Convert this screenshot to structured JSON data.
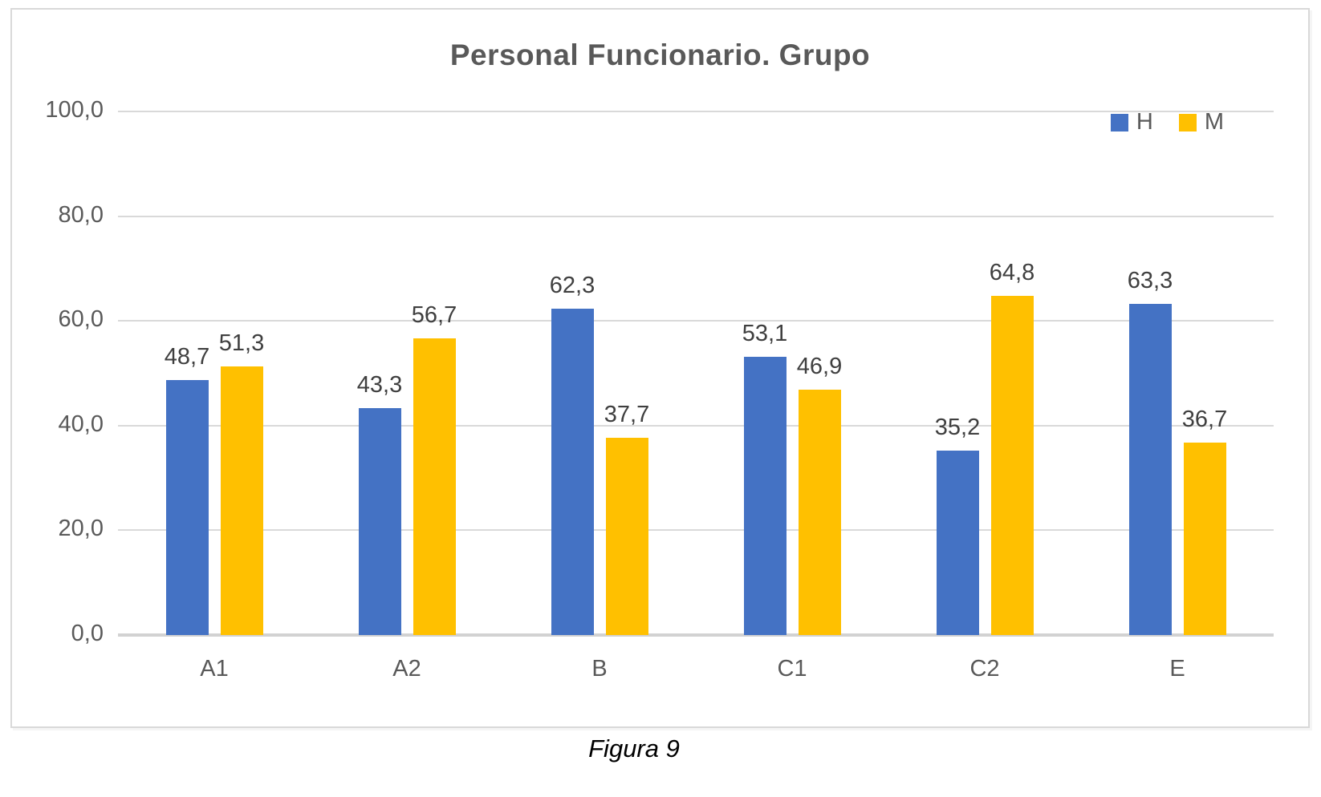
{
  "figure": {
    "caption": "Figura 9"
  },
  "chart_data": {
    "type": "bar",
    "title": "Personal Funcionario. Grupo",
    "categories": [
      "A1",
      "A2",
      "B",
      "C1",
      "C2",
      "E"
    ],
    "series": [
      {
        "name": "H",
        "color": "#4472C4",
        "values": [
          48.7,
          43.3,
          62.3,
          53.1,
          35.2,
          63.3
        ],
        "labels": [
          "48,7",
          "43,3",
          "62,3",
          "53,1",
          "35,2",
          "63,3"
        ]
      },
      {
        "name": "M",
        "color": "#FFC000",
        "values": [
          51.3,
          56.7,
          37.7,
          46.9,
          64.8,
          36.7
        ],
        "labels": [
          "51,3",
          "56,7",
          "37,7",
          "46,9",
          "64,8",
          "36,7"
        ]
      }
    ],
    "y_axis": {
      "min": 0,
      "max": 100,
      "tick_values": [
        0,
        20,
        40,
        60,
        80,
        100
      ],
      "tick_labels": [
        "0,0",
        "20,0",
        "40,0",
        "60,0",
        "80,0",
        "100,0"
      ]
    },
    "legend": {
      "position": "top-right",
      "entries": [
        "H",
        "M"
      ]
    },
    "grid": true,
    "colors": {
      "grid": "#D9D9D9",
      "axis_text": "#595959",
      "value_label_text": "#3F3F3F",
      "title_text": "#595959",
      "frame_border": "#D9D9D9",
      "series_h": "#4472C4",
      "series_m": "#FFC000"
    }
  }
}
